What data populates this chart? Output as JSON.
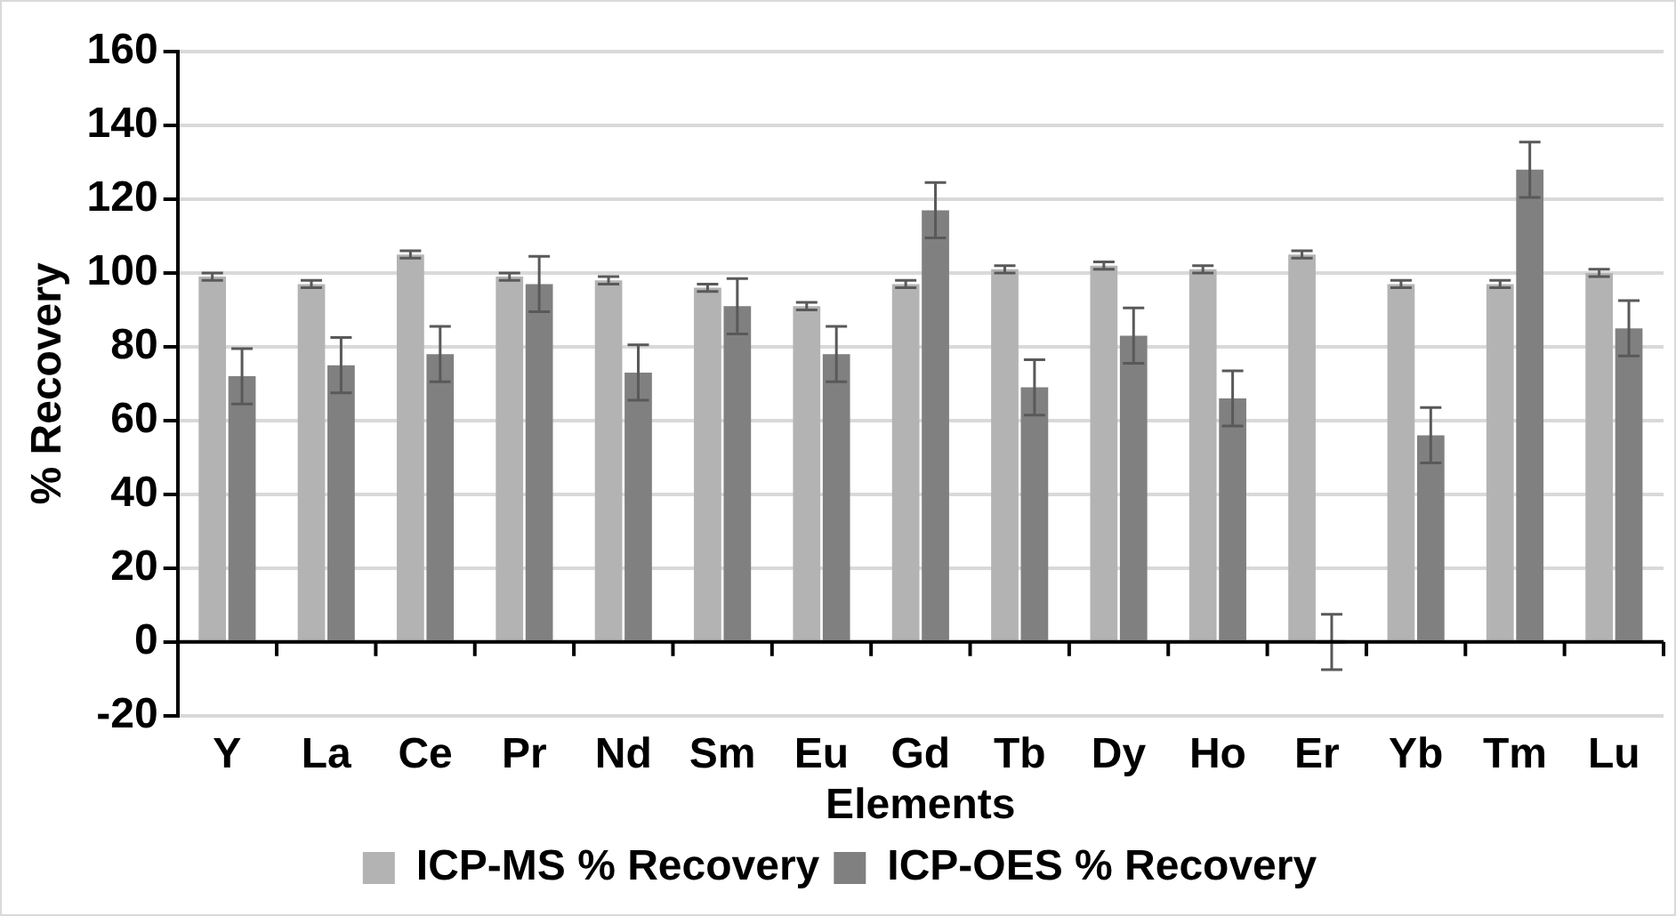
{
  "chart_data": {
    "type": "bar",
    "xlabel": "Elements",
    "ylabel": "% Recovery",
    "categories": [
      "Y",
      "La",
      "Ce",
      "Pr",
      "Nd",
      "Sm",
      "Eu",
      "Gd",
      "Tb",
      "Dy",
      "Ho",
      "Er",
      "Yb",
      "Tm",
      "Lu"
    ],
    "series": [
      {
        "name": "ICP-MS % Recovery",
        "color": "#b3b3b3",
        "values": [
          99,
          97,
          105,
          99,
          98,
          96,
          91,
          97,
          101,
          102,
          101,
          105,
          97,
          97,
          100
        ],
        "errors": [
          1,
          1,
          1,
          1,
          1,
          1,
          1,
          1,
          1,
          1,
          1,
          1,
          1,
          1,
          1
        ]
      },
      {
        "name": "ICP-OES % Recovery",
        "color": "#808080",
        "values": [
          72,
          75,
          78,
          97,
          73,
          91,
          78,
          117,
          69,
          83,
          66,
          0,
          56,
          128,
          85
        ],
        "errors": [
          7.5,
          7.5,
          7.5,
          7.5,
          7.5,
          7.5,
          7.5,
          7.5,
          7.5,
          7.5,
          7.5,
          7.5,
          7.5,
          7.5,
          7.5
        ]
      }
    ],
    "ylim": [
      -20,
      160
    ],
    "yticks": [
      -20,
      0,
      20,
      40,
      60,
      80,
      100,
      120,
      140,
      160
    ],
    "grid": "y",
    "legend": "bottom"
  }
}
